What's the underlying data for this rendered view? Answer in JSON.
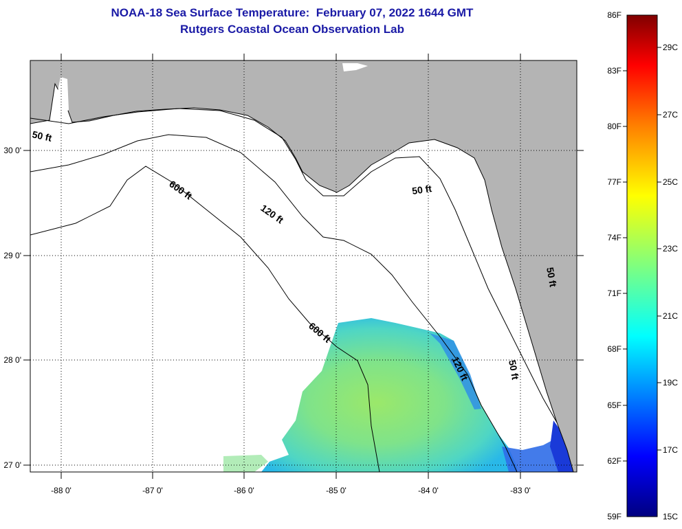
{
  "header": {
    "title": "NOAA-18 Sea Surface Temperature:  February 07, 2022 1644 GMT",
    "subtitle": "Rutgers Coastal Ocean Observation Lab"
  },
  "map": {
    "lon_labels": [
      "-88 0'",
      "-87 0'",
      "-86 0'",
      "-85 0'",
      "-84 0'",
      "-83 0'"
    ],
    "lat_labels": [
      "30 0'",
      "29 0'",
      "28 0'",
      "27 0'"
    ],
    "contour_labels": [
      "50 ft",
      "600 ft",
      "120 ft",
      "50 ft",
      "600 ft",
      "120 ft",
      "50 ft",
      "50 ft"
    ],
    "colors": {
      "land": "#b4b4b4",
      "ocean_no_data": "#ffffff",
      "contour": "#000000"
    }
  },
  "colorbar": {
    "fahrenheit_labels": [
      "86F",
      "83F",
      "80F",
      "77F",
      "74F",
      "71F",
      "68F",
      "65F",
      "62F",
      "59F"
    ],
    "celsius_labels": [
      "29C",
      "27C",
      "25C",
      "23C",
      "21C",
      "19C",
      "17C",
      "15C"
    ],
    "colors": [
      "#000080",
      "#0000ff",
      "#00ffff",
      "#7fff7f",
      "#ffff00",
      "#ff7f00",
      "#ff0000",
      "#800000"
    ]
  }
}
